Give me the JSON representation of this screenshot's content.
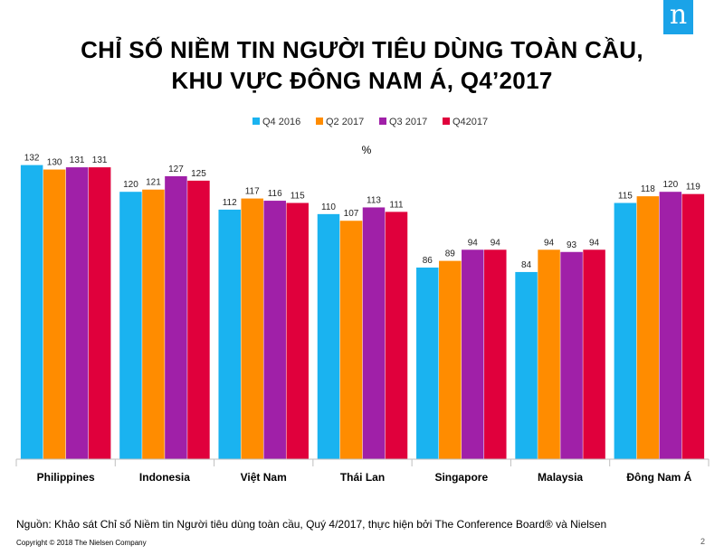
{
  "logo": {
    "letter": "n",
    "icon": "nielsen-logo-icon"
  },
  "title": {
    "line1": "CHỈ SỐ NIỀM TIN NGƯỜI TIÊU DÙNG TOÀN CẦU,",
    "line2": "KHU VỰC ĐÔNG NAM Á, Q4’2017"
  },
  "chart_data": {
    "type": "bar",
    "unit_label": "%",
    "categories": [
      "Philippines",
      "Indonesia",
      "Việt Nam",
      "Thái Lan",
      "Singapore",
      "Malaysia",
      "Đông Nam Á"
    ],
    "series": [
      {
        "name": "Q4 2016",
        "color": "#1ab3f0",
        "values": [
          132,
          120,
          112,
          110,
          86,
          84,
          115
        ]
      },
      {
        "name": "Q2 2017",
        "color": "#ff8c00",
        "values": [
          130,
          121,
          117,
          107,
          89,
          94,
          118
        ]
      },
      {
        "name": "Q3 2017",
        "color": "#a020a8",
        "values": [
          131,
          127,
          116,
          113,
          94,
          93,
          120
        ]
      },
      {
        "name": "Q42017",
        "color": "#e0003c",
        "values": [
          131,
          125,
          115,
          111,
          94,
          94,
          119
        ]
      }
    ],
    "ylim": [
      0,
      135
    ],
    "legend_position": "top-center",
    "grid": false
  },
  "footer": {
    "source": "Nguồn: Khảo sát Chỉ số Niềm tin Người tiêu dùng toàn cầu, Quý 4/2017, thực hiện bởi The Conference Board® và Nielsen",
    "copyright": "Copyright © 2018 The Nielsen Company",
    "page_number": "2"
  }
}
